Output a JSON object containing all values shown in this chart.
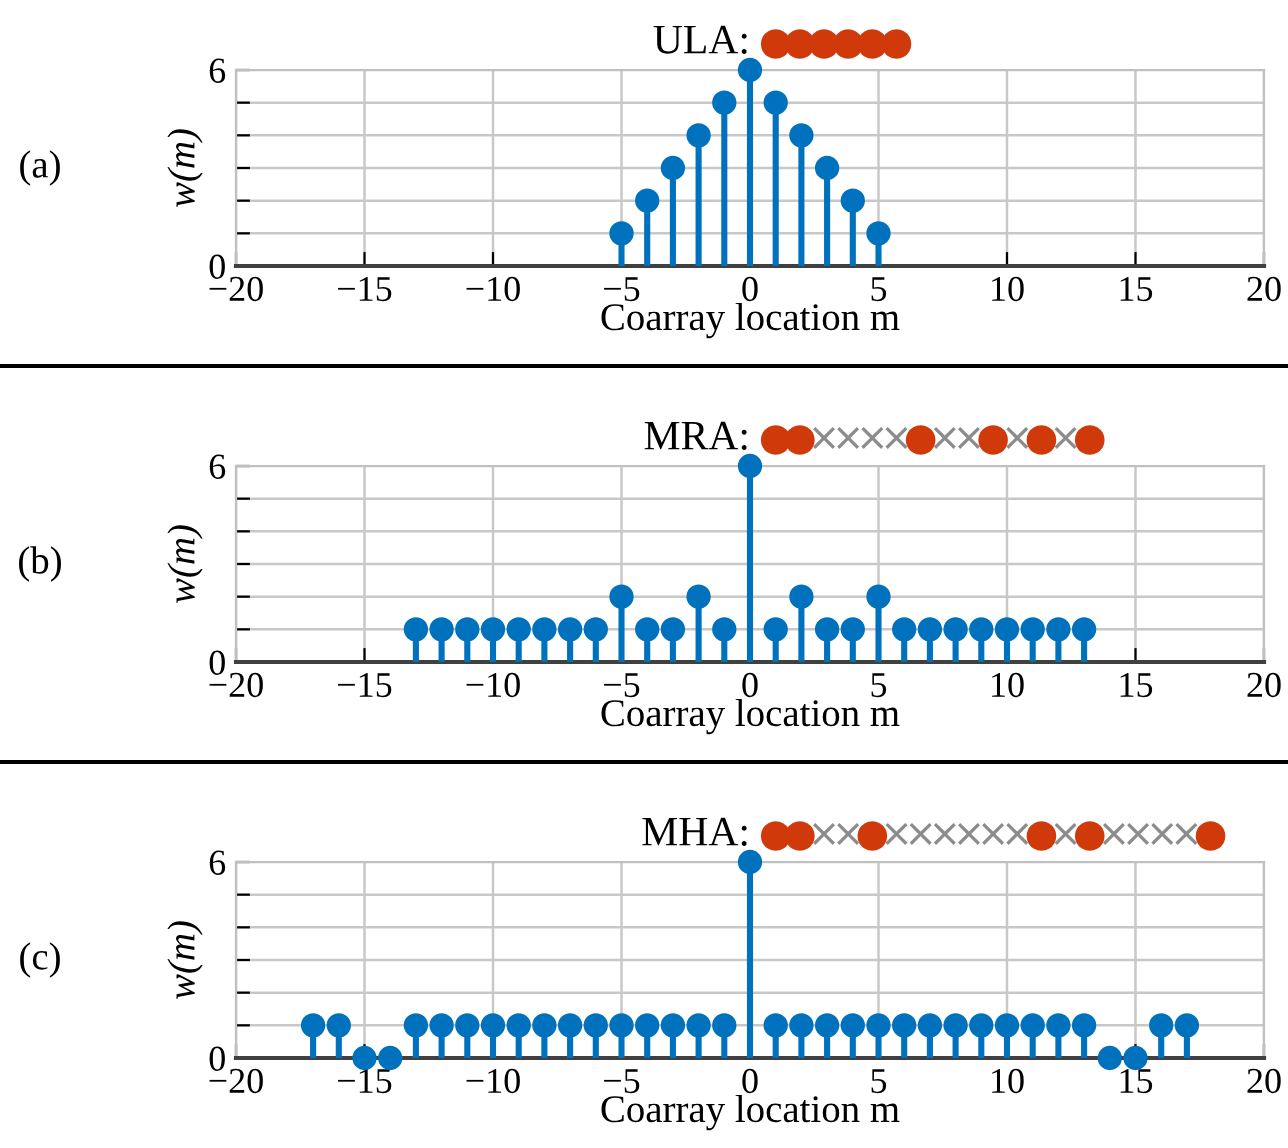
{
  "chart_data": [
    {
      "type": "lollipop",
      "title": "ULA:",
      "subtitle": "●●●●●●",
      "annotations": [
        "(a)"
      ],
      "xlabel": "Coarray location m",
      "ylabel": "w(m)",
      "xlim": [
        -20,
        20
      ],
      "xticks": [
        {
          "value": -20,
          "label": "−20"
        },
        {
          "value": -15,
          "label": "−15"
        },
        {
          "value": -10,
          "label": "−10"
        },
        {
          "value": -5,
          "label": "−5"
        },
        0,
        5,
        10,
        15,
        20
      ],
      "ylim": [
        0,
        6
      ],
      "yticks": [
        0,
        {
          "value": 1,
          "label": null
        },
        {
          "value": 2,
          "label": null
        },
        {
          "value": 3,
          "label": null
        },
        {
          "value": 4,
          "label": null
        },
        {
          "value": 5,
          "label": null
        },
        6
      ],
      "grid": true,
      "marker": "circle",
      "x": [
        -5,
        -4,
        -3,
        -2,
        -1,
        0,
        1,
        2,
        3,
        4,
        5
      ],
      "series": [
        {
          "color": "#0072bd",
          "values": [
            1,
            2,
            3,
            4,
            5,
            6,
            5,
            4,
            3,
            2,
            1
          ]
        }
      ]
    },
    {
      "type": "lollipop",
      "title": "MRA:",
      "subtitle": "●●××××●××●×●×●",
      "annotations": [
        "(b)"
      ],
      "xlabel": "Coarray location m",
      "ylabel": "w(m)",
      "xlim": [
        -20,
        20
      ],
      "xticks": [
        {
          "value": -20,
          "label": "−20"
        },
        {
          "value": -15,
          "label": "−15"
        },
        {
          "value": -10,
          "label": "−10"
        },
        {
          "value": -5,
          "label": "−5"
        },
        0,
        5,
        10,
        15,
        20
      ],
      "ylim": [
        0,
        6
      ],
      "yticks": [
        0,
        {
          "value": 1,
          "label": null
        },
        {
          "value": 2,
          "label": null
        },
        {
          "value": 3,
          "label": null
        },
        {
          "value": 4,
          "label": null
        },
        {
          "value": 5,
          "label": null
        },
        6
      ],
      "grid": true,
      "marker": "circle",
      "x": [
        -13,
        -12,
        -11,
        -10,
        -9,
        -8,
        -7,
        -6,
        -5,
        -4,
        -3,
        -2,
        -1,
        0,
        1,
        2,
        3,
        4,
        5,
        6,
        7,
        8,
        9,
        10,
        11,
        12,
        13
      ],
      "series": [
        {
          "color": "#0072bd",
          "values": [
            1,
            1,
            1,
            1,
            1,
            1,
            1,
            1,
            2,
            1,
            1,
            2,
            1,
            6,
            1,
            2,
            1,
            1,
            2,
            1,
            1,
            1,
            1,
            1,
            1,
            1,
            1
          ]
        }
      ]
    },
    {
      "type": "lollipop",
      "title": "MHA:",
      "subtitle": "●●××●××××××●×●××××●",
      "annotations": [
        "(c)"
      ],
      "xlabel": "Coarray location m",
      "ylabel": "w(m)",
      "xlim": [
        -20,
        20
      ],
      "xticks": [
        {
          "value": -20,
          "label": "−20"
        },
        {
          "value": -15,
          "label": "−15"
        },
        {
          "value": -10,
          "label": "−10"
        },
        {
          "value": -5,
          "label": "−5"
        },
        0,
        5,
        10,
        15,
        20
      ],
      "ylim": [
        0,
        6
      ],
      "yticks": [
        0,
        {
          "value": 1,
          "label": null
        },
        {
          "value": 2,
          "label": null
        },
        {
          "value": 3,
          "label": null
        },
        {
          "value": 4,
          "label": null
        },
        {
          "value": 5,
          "label": null
        },
        6
      ],
      "grid": true,
      "marker": "circle",
      "x": [
        -17,
        -16,
        -15,
        -14,
        -13,
        -12,
        -11,
        -10,
        -9,
        -8,
        -7,
        -6,
        -5,
        -4,
        -3,
        -2,
        -1,
        0,
        1,
        2,
        3,
        4,
        5,
        6,
        7,
        8,
        9,
        10,
        11,
        12,
        13,
        14,
        15,
        16,
        17
      ],
      "series": [
        {
          "color": "#0072bd",
          "values": [
            1,
            1,
            0,
            0,
            1,
            1,
            1,
            1,
            1,
            1,
            1,
            1,
            1,
            1,
            1,
            1,
            1,
            6,
            1,
            1,
            1,
            1,
            1,
            1,
            1,
            1,
            1,
            1,
            1,
            1,
            1,
            0,
            0,
            1,
            1
          ]
        }
      ]
    }
  ]
}
